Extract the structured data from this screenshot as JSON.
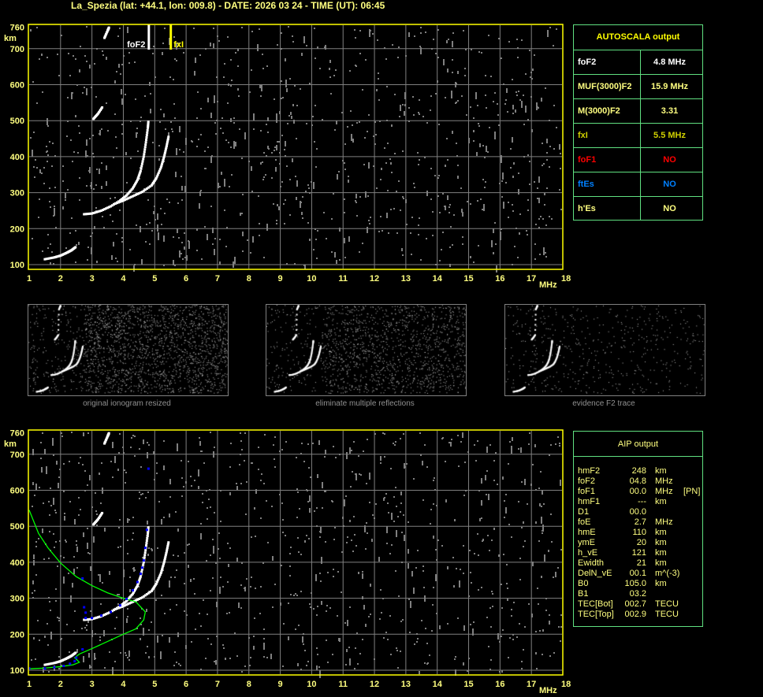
{
  "title": "La_Spezia (lat: +44.1, lon: 009.8) - DATE: 2026 03 24 - TIME (UT): 06:45",
  "colors": {
    "axis": "#ffff00",
    "grid": "#808080",
    "trace": "#ffffff",
    "noise": "#808080",
    "table_border": "#60e080",
    "fit": "#0000ff",
    "profile": "#00ff00"
  },
  "autoscala": {
    "header": "AUTOSCALA output",
    "rows": [
      {
        "key": "foF2",
        "value": "4.8 MHz",
        "color": "#ffffff"
      },
      {
        "key": "MUF(3000)F2",
        "value": "15.9 MHz",
        "color": "#ffff80"
      },
      {
        "key": "M(3000)F2",
        "value": "3.31",
        "color": "#ffff80"
      },
      {
        "key": "fxI",
        "value": "5.5 MHz",
        "color": "#d0d000"
      },
      {
        "key": "foF1",
        "value": "NO",
        "color": "#ff0000"
      },
      {
        "key": "ftEs",
        "value": "NO",
        "color": "#0080ff"
      },
      {
        "key": "h'Es",
        "value": "NO",
        "color": "#ffff80"
      }
    ]
  },
  "aip": {
    "header": "AIP output",
    "rows": [
      {
        "k": "hmF2",
        "v": "248",
        "u": "km",
        "x": ""
      },
      {
        "k": "foF2",
        "v": "04.8",
        "u": "MHz",
        "x": ""
      },
      {
        "k": "foF1",
        "v": "00.0",
        "u": "MHz",
        "x": "[PN]"
      },
      {
        "k": "hmF1",
        "v": "---",
        "u": "km",
        "x": ""
      },
      {
        "k": "D1",
        "v": "00.0",
        "u": "",
        "x": ""
      },
      {
        "k": "foE",
        "v": "2.7",
        "u": "MHz",
        "x": ""
      },
      {
        "k": "hmE",
        "v": "110",
        "u": "km",
        "x": ""
      },
      {
        "k": "ymE",
        "v": "20",
        "u": "km",
        "x": ""
      },
      {
        "k": "h_vE",
        "v": "121",
        "u": "km",
        "x": ""
      },
      {
        "k": "Ewidth",
        "v": "21",
        "u": "km",
        "x": ""
      },
      {
        "k": "DelN_vE",
        "v": "00.1",
        "u": "m^(-3)",
        "x": ""
      },
      {
        "k": "B0",
        "v": "105.0",
        "u": "km",
        "x": ""
      },
      {
        "k": "B1",
        "v": "03.2",
        "u": "",
        "x": ""
      },
      {
        "k": "TEC[Bot]",
        "v": "002.7",
        "u": "TECU",
        "x": ""
      },
      {
        "k": "TEC[Top]",
        "v": "002.9",
        "u": "TECU",
        "x": ""
      }
    ]
  },
  "thumbnails": [
    {
      "caption": "original ionogram resized"
    },
    {
      "caption": "eliminate multiple reflections"
    },
    {
      "caption": "evidence F2 trace"
    }
  ],
  "chart_data": [
    {
      "type": "scatter",
      "xlabel": "MHz",
      "ylabel": "km",
      "xlim": [
        1,
        18
      ],
      "ylim": [
        100,
        760
      ],
      "xticks": [
        "1",
        "2",
        "3",
        "4",
        "5",
        "6",
        "7",
        "8",
        "9",
        "10",
        "11",
        "12",
        "13",
        "14",
        "15",
        "16",
        "17",
        "18"
      ],
      "yticks": [
        "100",
        "200",
        "300",
        "400",
        "500",
        "600",
        "700",
        "760"
      ],
      "grid": true,
      "markers": [
        {
          "label": "foF2",
          "x": 4.8,
          "color": "#ffffff"
        },
        {
          "label": "fxI",
          "x": 5.5,
          "color": "#ffff00"
        }
      ],
      "traces": {
        "o_F2": [
          [
            2.75,
            240
          ],
          [
            3.0,
            242
          ],
          [
            3.3,
            250
          ],
          [
            3.6,
            262
          ],
          [
            3.9,
            278
          ],
          [
            4.1,
            292
          ],
          [
            4.3,
            312
          ],
          [
            4.45,
            335
          ],
          [
            4.55,
            360
          ],
          [
            4.65,
            400
          ],
          [
            4.72,
            440
          ],
          [
            4.78,
            480
          ],
          [
            4.8,
            500
          ]
        ],
        "x_F2": [
          [
            3.7,
            268
          ],
          [
            4.0,
            278
          ],
          [
            4.3,
            290
          ],
          [
            4.6,
            302
          ],
          [
            4.9,
            320
          ],
          [
            5.05,
            340
          ],
          [
            5.2,
            370
          ],
          [
            5.3,
            400
          ],
          [
            5.38,
            430
          ],
          [
            5.45,
            460
          ]
        ],
        "E": [
          [
            1.5,
            115
          ],
          [
            1.8,
            120
          ],
          [
            2.0,
            125
          ],
          [
            2.2,
            133
          ],
          [
            2.35,
            140
          ],
          [
            2.5,
            150
          ]
        ],
        "second_hop": [
          [
            3.05,
            505
          ],
          [
            3.2,
            520
          ],
          [
            3.35,
            540
          ],
          [
            3.4,
            730
          ],
          [
            3.5,
            750
          ],
          [
            3.55,
            760
          ]
        ]
      }
    },
    {
      "type": "scatter",
      "xlabel": "MHz",
      "ylabel": "km",
      "xlim": [
        1,
        18
      ],
      "ylim": [
        100,
        760
      ],
      "xticks": [
        "1",
        "2",
        "3",
        "4",
        "5",
        "6",
        "7",
        "8",
        "9",
        "10",
        "11",
        "12",
        "13",
        "14",
        "15",
        "16",
        "17",
        "18"
      ],
      "yticks": [
        "100",
        "200",
        "300",
        "400",
        "500",
        "600",
        "700",
        "760"
      ],
      "grid": true,
      "fit_points": [
        [
          1.0,
          105
        ],
        [
          1.5,
          105
        ],
        [
          1.8,
          108
        ],
        [
          2.1,
          112
        ],
        [
          2.3,
          118
        ],
        [
          2.45,
          125
        ],
        [
          2.5,
          135
        ],
        [
          2.7,
          158
        ],
        [
          2.8,
          245
        ],
        [
          3.0,
          245
        ],
        [
          3.3,
          252
        ],
        [
          3.6,
          262
        ],
        [
          3.9,
          280
        ],
        [
          4.1,
          298
        ],
        [
          4.3,
          322
        ],
        [
          4.45,
          345
        ],
        [
          4.55,
          368
        ],
        [
          4.6,
          385
        ],
        [
          4.65,
          405
        ],
        [
          4.7,
          440
        ],
        [
          4.75,
          490
        ],
        [
          2.7,
          355
        ],
        [
          2.75,
          275
        ],
        [
          2.8,
          260
        ],
        [
          4.8,
          660
        ]
      ],
      "profile": [
        [
          1.0,
          545
        ],
        [
          1.3,
          480
        ],
        [
          1.6,
          440
        ],
        [
          2.0,
          398
        ],
        [
          2.5,
          360
        ],
        [
          3.0,
          335
        ],
        [
          3.5,
          315
        ],
        [
          4.0,
          300
        ],
        [
          4.4,
          290
        ],
        [
          4.7,
          262
        ],
        [
          4.65,
          240
        ],
        [
          4.4,
          215
        ],
        [
          4.0,
          200
        ],
        [
          3.5,
          180
        ],
        [
          3.0,
          160
        ],
        [
          2.6,
          145
        ],
        [
          2.45,
          135
        ],
        [
          2.6,
          122
        ],
        [
          2.4,
          115
        ],
        [
          2.0,
          110
        ],
        [
          1.5,
          106
        ],
        [
          1.0,
          104
        ]
      ]
    }
  ]
}
